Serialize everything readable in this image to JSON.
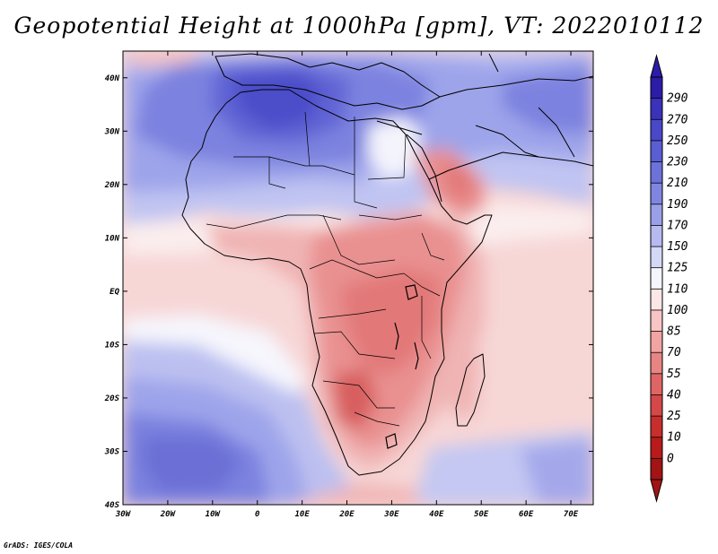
{
  "title": "Geopotential Height at 1000hPa [gpm], VT: 2022010112",
  "credit": "GrADS: IGES/COLA",
  "map": {
    "variable": "Geopotential Height",
    "level": "1000hPa",
    "units": "gpm",
    "valid_time": "2022010112",
    "lon_range": [
      -30,
      75
    ],
    "lat_range": [
      -40,
      45
    ],
    "x_ticks": [
      "30W",
      "20W",
      "10W",
      "0",
      "10E",
      "20E",
      "30E",
      "40E",
      "50E",
      "60E",
      "70E"
    ],
    "y_ticks": [
      "40N",
      "30N",
      "20N",
      "10N",
      "EQ",
      "10S",
      "20S",
      "30S",
      "40S"
    ]
  },
  "colorbar": {
    "labels": [
      "290",
      "270",
      "250",
      "230",
      "210",
      "190",
      "170",
      "150",
      "125",
      "110",
      "100",
      "85",
      "70",
      "55",
      "40",
      "25",
      "10",
      "0"
    ],
    "colors": [
      "#2c1ca8",
      "#3a32bb",
      "#4a48c8",
      "#5a5ed2",
      "#6c72da",
      "#8086e0",
      "#9aa0e8",
      "#b6baf0",
      "#d4d8f6",
      "#f4f5fd",
      "#fde6e6",
      "#f9c4c4",
      "#f2a3a3",
      "#e98484",
      "#df6565",
      "#d44848",
      "#c72e2e",
      "#b81b1b",
      "#a31414"
    ]
  }
}
